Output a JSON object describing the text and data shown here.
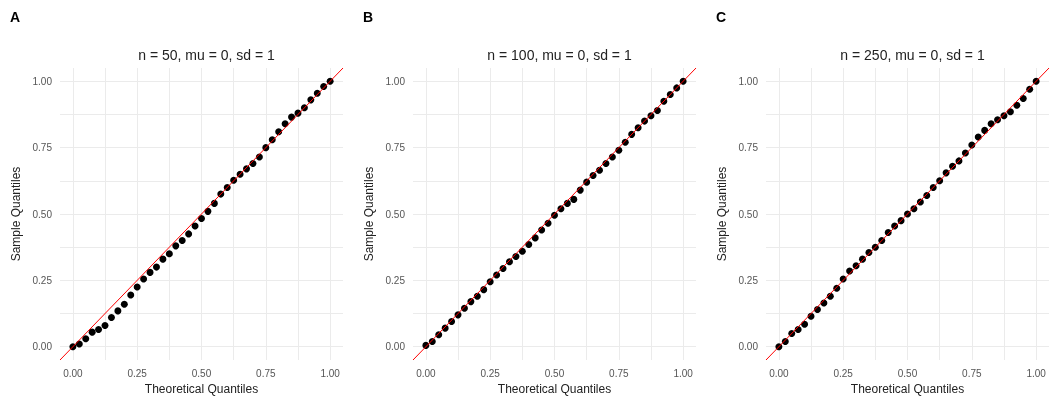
{
  "chart_data": [
    {
      "type": "scatter",
      "title": "n = 50, mu = 0, sd = 1",
      "xlabel": "Theoretical Quantiles",
      "ylabel": "Sample Quantiles",
      "annotations": [
        "A"
      ],
      "xlim": [
        -0.05,
        1.05
      ],
      "ylim": [
        -0.05,
        1.05
      ],
      "xticks": [
        {
          "value": 0,
          "label": "0.00"
        },
        {
          "value": 0.125,
          "label": null
        },
        {
          "value": 0.25,
          "label": "0.25"
        },
        {
          "value": 0.375,
          "label": null
        },
        {
          "value": 0.5,
          "label": "0.50"
        },
        {
          "value": 0.625,
          "label": null
        },
        {
          "value": 0.75,
          "label": "0.75"
        },
        {
          "value": 0.875,
          "label": null
        },
        {
          "value": 1,
          "label": "1.00"
        }
      ],
      "yticks": [
        {
          "value": 0,
          "label": "0.00"
        },
        {
          "value": 0.125,
          "label": null
        },
        {
          "value": 0.25,
          "label": "0.25"
        },
        {
          "value": 0.375,
          "label": null
        },
        {
          "value": 0.5,
          "label": "0.50"
        },
        {
          "value": 0.625,
          "label": null
        },
        {
          "value": 0.75,
          "label": "0.75"
        },
        {
          "value": 0.875,
          "label": null
        },
        {
          "value": 1,
          "label": "1.00"
        }
      ],
      "grid": true,
      "marker": "circle",
      "series": [
        {
          "color": "#000000",
          "x": [
            0,
            0.025,
            0.05,
            0.075,
            0.1,
            0.125,
            0.15,
            0.175,
            0.2,
            0.225,
            0.25,
            0.275,
            0.3,
            0.325,
            0.35,
            0.375,
            0.4,
            0.425,
            0.45,
            0.475,
            0.5,
            0.525,
            0.55,
            0.575,
            0.6,
            0.625,
            0.65,
            0.675,
            0.7,
            0.725,
            0.75,
            0.775,
            0.8,
            0.825,
            0.85,
            0.875,
            0.9,
            0.925,
            0.95,
            0.975,
            1
          ],
          "values": [
            0,
            0.01,
            0.03,
            0.055,
            0.065,
            0.08,
            0.11,
            0.135,
            0.16,
            0.195,
            0.225,
            0.255,
            0.28,
            0.3,
            0.33,
            0.35,
            0.38,
            0.4,
            0.425,
            0.455,
            0.483,
            0.51,
            0.54,
            0.575,
            0.6,
            0.627,
            0.65,
            0.67,
            0.69,
            0.715,
            0.75,
            0.78,
            0.81,
            0.84,
            0.865,
            0.88,
            0.9,
            0.93,
            0.955,
            0.98,
            1
          ]
        },
        {
          "type": "line",
          "color": "#ff0000",
          "marker": "none",
          "x": [
            -0.05,
            1.05
          ],
          "values": [
            -0.05,
            1.05
          ]
        }
      ]
    },
    {
      "type": "scatter",
      "title": "n = 100, mu = 0, sd = 1",
      "xlabel": "Theoretical Quantiles",
      "ylabel": "Sample Quantiles",
      "annotations": [
        "B"
      ],
      "xlim": [
        -0.05,
        1.05
      ],
      "ylim": [
        -0.05,
        1.05
      ],
      "xticks": [
        {
          "value": 0,
          "label": "0.00"
        },
        {
          "value": 0.125,
          "label": null
        },
        {
          "value": 0.25,
          "label": "0.25"
        },
        {
          "value": 0.375,
          "label": null
        },
        {
          "value": 0.5,
          "label": "0.50"
        },
        {
          "value": 0.625,
          "label": null
        },
        {
          "value": 0.75,
          "label": "0.75"
        },
        {
          "value": 0.875,
          "label": null
        },
        {
          "value": 1,
          "label": "1.00"
        }
      ],
      "yticks": [
        {
          "value": 0,
          "label": "0.00"
        },
        {
          "value": 0.125,
          "label": null
        },
        {
          "value": 0.25,
          "label": "0.25"
        },
        {
          "value": 0.375,
          "label": null
        },
        {
          "value": 0.5,
          "label": "0.50"
        },
        {
          "value": 0.625,
          "label": null
        },
        {
          "value": 0.75,
          "label": "0.75"
        },
        {
          "value": 0.875,
          "label": null
        },
        {
          "value": 1,
          "label": "1.00"
        }
      ],
      "grid": true,
      "marker": "circle",
      "series": [
        {
          "color": "#000000",
          "x": [
            0,
            0.025,
            0.05,
            0.075,
            0.1,
            0.125,
            0.15,
            0.175,
            0.2,
            0.225,
            0.25,
            0.275,
            0.3,
            0.325,
            0.35,
            0.375,
            0.4,
            0.425,
            0.45,
            0.475,
            0.5,
            0.525,
            0.55,
            0.575,
            0.6,
            0.625,
            0.65,
            0.675,
            0.7,
            0.725,
            0.75,
            0.775,
            0.8,
            0.825,
            0.85,
            0.875,
            0.9,
            0.925,
            0.95,
            0.975,
            1
          ],
          "values": [
            0.005,
            0.02,
            0.045,
            0.07,
            0.095,
            0.12,
            0.145,
            0.17,
            0.19,
            0.215,
            0.245,
            0.27,
            0.295,
            0.32,
            0.34,
            0.36,
            0.385,
            0.41,
            0.44,
            0.465,
            0.495,
            0.52,
            0.54,
            0.555,
            0.59,
            0.62,
            0.645,
            0.665,
            0.69,
            0.715,
            0.74,
            0.77,
            0.8,
            0.825,
            0.85,
            0.87,
            0.89,
            0.925,
            0.95,
            0.975,
            1
          ]
        },
        {
          "type": "line",
          "color": "#ff0000",
          "marker": "none",
          "x": [
            -0.05,
            1.05
          ],
          "values": [
            -0.05,
            1.05
          ]
        }
      ]
    },
    {
      "type": "scatter",
      "title": "n = 250, mu = 0, sd = 1",
      "xlabel": "Theoretical Quantiles",
      "ylabel": "Sample Quantiles",
      "annotations": [
        "C"
      ],
      "xlim": [
        -0.05,
        1.05
      ],
      "ylim": [
        -0.05,
        1.05
      ],
      "xticks": [
        {
          "value": 0,
          "label": "0.00"
        },
        {
          "value": 0.125,
          "label": null
        },
        {
          "value": 0.25,
          "label": "0.25"
        },
        {
          "value": 0.375,
          "label": null
        },
        {
          "value": 0.5,
          "label": "0.50"
        },
        {
          "value": 0.625,
          "label": null
        },
        {
          "value": 0.75,
          "label": "0.75"
        },
        {
          "value": 0.875,
          "label": null
        },
        {
          "value": 1,
          "label": "1.00"
        }
      ],
      "yticks": [
        {
          "value": 0,
          "label": "0.00"
        },
        {
          "value": 0.125,
          "label": null
        },
        {
          "value": 0.25,
          "label": "0.25"
        },
        {
          "value": 0.375,
          "label": null
        },
        {
          "value": 0.5,
          "label": "0.50"
        },
        {
          "value": 0.625,
          "label": null
        },
        {
          "value": 0.75,
          "label": "0.75"
        },
        {
          "value": 0.875,
          "label": null
        },
        {
          "value": 1,
          "label": "1.00"
        }
      ],
      "grid": true,
      "marker": "circle",
      "series": [
        {
          "color": "#000000",
          "x": [
            0,
            0.025,
            0.05,
            0.075,
            0.1,
            0.125,
            0.15,
            0.175,
            0.2,
            0.225,
            0.25,
            0.275,
            0.3,
            0.325,
            0.35,
            0.375,
            0.4,
            0.425,
            0.45,
            0.475,
            0.5,
            0.525,
            0.55,
            0.575,
            0.6,
            0.625,
            0.65,
            0.675,
            0.7,
            0.725,
            0.75,
            0.775,
            0.8,
            0.825,
            0.85,
            0.875,
            0.9,
            0.925,
            0.95,
            0.975,
            1
          ],
          "values": [
            0,
            0.02,
            0.05,
            0.065,
            0.085,
            0.115,
            0.14,
            0.165,
            0.19,
            0.22,
            0.255,
            0.285,
            0.305,
            0.33,
            0.355,
            0.375,
            0.4,
            0.43,
            0.455,
            0.475,
            0.5,
            0.52,
            0.545,
            0.57,
            0.6,
            0.625,
            0.655,
            0.68,
            0.7,
            0.73,
            0.76,
            0.79,
            0.815,
            0.84,
            0.855,
            0.87,
            0.885,
            0.91,
            0.935,
            0.97,
            1
          ]
        },
        {
          "type": "line",
          "color": "#ff0000",
          "marker": "none",
          "x": [
            -0.05,
            1.05
          ],
          "values": [
            -0.05,
            1.05
          ]
        }
      ]
    }
  ]
}
